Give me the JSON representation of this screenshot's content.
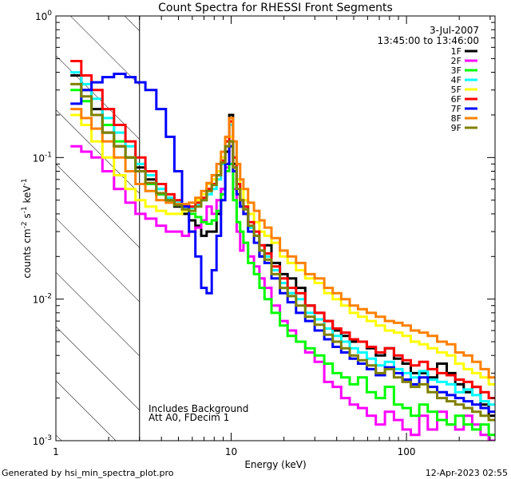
{
  "chart_data": {
    "type": "line",
    "title": "Count Spectra for RHESSI Front Segments",
    "xlabel": "Energy (keV)",
    "ylabel_main": "counts cm",
    "ylabel_sup1": "-2",
    "ylabel_mid": " s",
    "ylabel_sup2": "-1",
    "ylabel_end": " keV",
    "ylabel_sup3": "-1",
    "xscale": "log",
    "yscale": "log",
    "xlim": [
      1,
      320
    ],
    "ylim": [
      0.001,
      1
    ],
    "x_ticks": [
      {
        "value": 1,
        "label": "1"
      },
      {
        "value": 10,
        "label": "10"
      },
      {
        "value": 100,
        "label": "100"
      }
    ],
    "y_ticks": [
      {
        "value": 1,
        "base": "10",
        "exp": "0"
      },
      {
        "value": 0.1,
        "base": "10",
        "exp": "-1"
      },
      {
        "value": 0.01,
        "base": "10",
        "exp": "-2"
      },
      {
        "value": 0.001,
        "base": "10",
        "exp": "-3"
      }
    ],
    "hatched_region": {
      "from": 1,
      "to": 3
    },
    "date": "3-Jul-2007",
    "time_range": "13:45:00 to 13:46:00",
    "annotations": [
      "Includes Background",
      "Att A0, FDecim 1"
    ],
    "footer_left": "Generated by hsi_min_spectra_plot.pro",
    "footer_right": "12-Apr-2023 02:55",
    "energy_bins": [
      1.3,
      1.5,
      1.7,
      2.0,
      2.3,
      2.7,
      3.0,
      3.5,
      4.0,
      4.5,
      5.0,
      5.5,
      6.0,
      6.5,
      7.0,
      7.5,
      8.0,
      8.5,
      9.0,
      9.5,
      10.0,
      10.5,
      11.0,
      11.5,
      12.0,
      13.0,
      14.0,
      15.0,
      16.0,
      18.0,
      20.0,
      22.0,
      25.0,
      28.0,
      32.0,
      36.0,
      40.0,
      45.0,
      50.0,
      56.0,
      63.0,
      71.0,
      80.0,
      90.0,
      100.0,
      112.0,
      125.0,
      140.0,
      160.0,
      180.0,
      200.0,
      225.0,
      250.0,
      280.0,
      310.0
    ],
    "series": [
      {
        "name": "1F",
        "color": "#000000",
        "values": [
          0.38,
          0.3,
          0.22,
          0.15,
          0.12,
          0.1,
          0.085,
          0.07,
          0.055,
          0.05,
          0.045,
          0.04,
          0.036,
          0.033,
          0.028,
          0.03,
          0.03,
          0.04,
          0.06,
          0.11,
          0.2,
          0.09,
          0.055,
          0.045,
          0.04,
          0.032,
          0.028,
          0.02,
          0.024,
          0.018,
          0.015,
          0.014,
          0.012,
          0.009,
          0.008,
          0.007,
          0.006,
          0.0055,
          0.005,
          0.005,
          0.0045,
          0.004,
          0.0045,
          0.0038,
          0.0035,
          0.003,
          0.003,
          0.0028,
          0.0035,
          0.003,
          0.0025,
          0.0022,
          0.0024,
          0.0018,
          0.0015
        ]
      },
      {
        "name": "2F",
        "color": "#ff00ff",
        "values": [
          0.12,
          0.11,
          0.1,
          0.08,
          0.06,
          0.048,
          0.04,
          0.037,
          0.033,
          0.03,
          0.03,
          0.028,
          0.03,
          0.032,
          0.036,
          0.045,
          0.04,
          0.05,
          0.06,
          0.085,
          0.13,
          0.06,
          0.03,
          0.022,
          0.025,
          0.02,
          0.017,
          0.014,
          0.012,
          0.009,
          0.007,
          0.006,
          0.005,
          0.0042,
          0.0036,
          0.0026,
          0.0024,
          0.002,
          0.0018,
          0.0017,
          0.0015,
          0.0013,
          0.0016,
          0.0014,
          0.0012,
          0.0011,
          0.0015,
          0.0012,
          0.0016,
          0.0013,
          0.0012,
          0.0015,
          0.0013,
          0.0011,
          0.001
        ]
      },
      {
        "name": "3F",
        "color": "#00ff00",
        "values": [
          0.3,
          0.25,
          0.2,
          0.17,
          0.13,
          0.1,
          0.08,
          0.065,
          0.055,
          0.05,
          0.046,
          0.043,
          0.04,
          0.038,
          0.035,
          0.034,
          0.036,
          0.042,
          0.055,
          0.08,
          0.09,
          0.05,
          0.035,
          0.03,
          0.025,
          0.018,
          0.015,
          0.012,
          0.01,
          0.008,
          0.0065,
          0.0055,
          0.005,
          0.0045,
          0.004,
          0.0035,
          0.003,
          0.0028,
          0.0025,
          0.0028,
          0.0022,
          0.002,
          0.0024,
          0.0018,
          0.0017,
          0.0015,
          0.0018,
          0.0016,
          0.0014,
          0.0013,
          0.0015,
          0.0013,
          0.0012,
          0.0013,
          0.0011
        ]
      },
      {
        "name": "4F",
        "color": "#00ffff",
        "values": [
          0.4,
          0.33,
          0.26,
          0.19,
          0.15,
          0.12,
          0.09,
          0.075,
          0.06,
          0.052,
          0.048,
          0.045,
          0.044,
          0.046,
          0.05,
          0.055,
          0.06,
          0.07,
          0.09,
          0.12,
          0.17,
          0.1,
          0.07,
          0.05,
          0.045,
          0.032,
          0.028,
          0.022,
          0.02,
          0.016,
          0.013,
          0.011,
          0.01,
          0.008,
          0.0072,
          0.0062,
          0.0055,
          0.005,
          0.0045,
          0.0042,
          0.0038,
          0.0034,
          0.0036,
          0.0032,
          0.003,
          0.0028,
          0.0031,
          0.0027,
          0.0026,
          0.0025,
          0.0022,
          0.0023,
          0.0021,
          0.0019,
          0.0018
        ]
      },
      {
        "name": "5F",
        "color": "#ffff00",
        "values": [
          0.2,
          0.17,
          0.13,
          0.1,
          0.075,
          0.06,
          0.05,
          0.045,
          0.042,
          0.04,
          0.04,
          0.042,
          0.045,
          0.05,
          0.055,
          0.065,
          0.07,
          0.08,
          0.1,
          0.13,
          0.14,
          0.1,
          0.07,
          0.06,
          0.05,
          0.04,
          0.035,
          0.03,
          0.028,
          0.025,
          0.02,
          0.018,
          0.016,
          0.014,
          0.013,
          0.011,
          0.01,
          0.009,
          0.008,
          0.0075,
          0.007,
          0.0065,
          0.006,
          0.0058,
          0.0055,
          0.005,
          0.0048,
          0.0045,
          0.0042,
          0.004,
          0.0035,
          0.0032,
          0.003,
          0.0028,
          0.0025
        ]
      },
      {
        "name": "6F",
        "color": "#ff0000",
        "values": [
          0.48,
          0.38,
          0.3,
          0.22,
          0.17,
          0.13,
          0.1,
          0.08,
          0.065,
          0.055,
          0.05,
          0.046,
          0.045,
          0.048,
          0.052,
          0.06,
          0.065,
          0.075,
          0.095,
          0.13,
          0.18,
          0.1,
          0.065,
          0.05,
          0.045,
          0.035,
          0.03,
          0.024,
          0.021,
          0.017,
          0.014,
          0.012,
          0.011,
          0.009,
          0.008,
          0.007,
          0.0062,
          0.0058,
          0.0052,
          0.005,
          0.0046,
          0.0042,
          0.0045,
          0.004,
          0.0037,
          0.0034,
          0.0036,
          0.0032,
          0.003,
          0.0029,
          0.0027,
          0.0026,
          0.0024,
          0.0022,
          0.002
        ]
      },
      {
        "name": "7F",
        "color": "#0000ff",
        "values": [
          0.24,
          0.3,
          0.34,
          0.37,
          0.39,
          0.37,
          0.34,
          0.3,
          0.22,
          0.14,
          0.08,
          0.045,
          0.03,
          0.02,
          0.012,
          0.011,
          0.016,
          0.028,
          0.05,
          0.09,
          0.12,
          0.08,
          0.055,
          0.045,
          0.04,
          0.03,
          0.025,
          0.02,
          0.018,
          0.014,
          0.011,
          0.0095,
          0.008,
          0.007,
          0.006,
          0.0052,
          0.0046,
          0.0042,
          0.0038,
          0.0035,
          0.0032,
          0.0029,
          0.0033,
          0.003,
          0.0027,
          0.0025,
          0.0028,
          0.0024,
          0.0022,
          0.0021,
          0.002,
          0.0019,
          0.0018,
          0.0017,
          0.0016
        ]
      },
      {
        "name": "8F",
        "color": "#ff8000",
        "values": [
          0.22,
          0.19,
          0.16,
          0.13,
          0.1,
          0.08,
          0.065,
          0.058,
          0.05,
          0.048,
          0.047,
          0.047,
          0.048,
          0.052,
          0.058,
          0.066,
          0.075,
          0.09,
          0.11,
          0.14,
          0.19,
          0.13,
          0.09,
          0.07,
          0.06,
          0.048,
          0.042,
          0.036,
          0.032,
          0.027,
          0.022,
          0.02,
          0.018,
          0.015,
          0.014,
          0.012,
          0.011,
          0.01,
          0.009,
          0.0085,
          0.008,
          0.0075,
          0.007,
          0.0068,
          0.0065,
          0.006,
          0.0058,
          0.0055,
          0.005,
          0.0048,
          0.0042,
          0.004,
          0.0036,
          0.0032,
          0.0028
        ]
      },
      {
        "name": "9F",
        "color": "#808000",
        "values": [
          0.33,
          0.27,
          0.2,
          0.15,
          0.12,
          0.1,
          0.08,
          0.066,
          0.056,
          0.05,
          0.046,
          0.043,
          0.042,
          0.045,
          0.05,
          0.058,
          0.064,
          0.075,
          0.092,
          0.12,
          0.13,
          0.085,
          0.06,
          0.05,
          0.043,
          0.033,
          0.028,
          0.022,
          0.019,
          0.015,
          0.012,
          0.0105,
          0.009,
          0.0075,
          0.0066,
          0.0056,
          0.005,
          0.0045,
          0.004,
          0.0037,
          0.0034,
          0.003,
          0.0032,
          0.0028,
          0.0026,
          0.0024,
          0.0025,
          0.0022,
          0.002,
          0.0019,
          0.0018,
          0.0017,
          0.0016,
          0.0015,
          0.0014
        ]
      }
    ]
  }
}
